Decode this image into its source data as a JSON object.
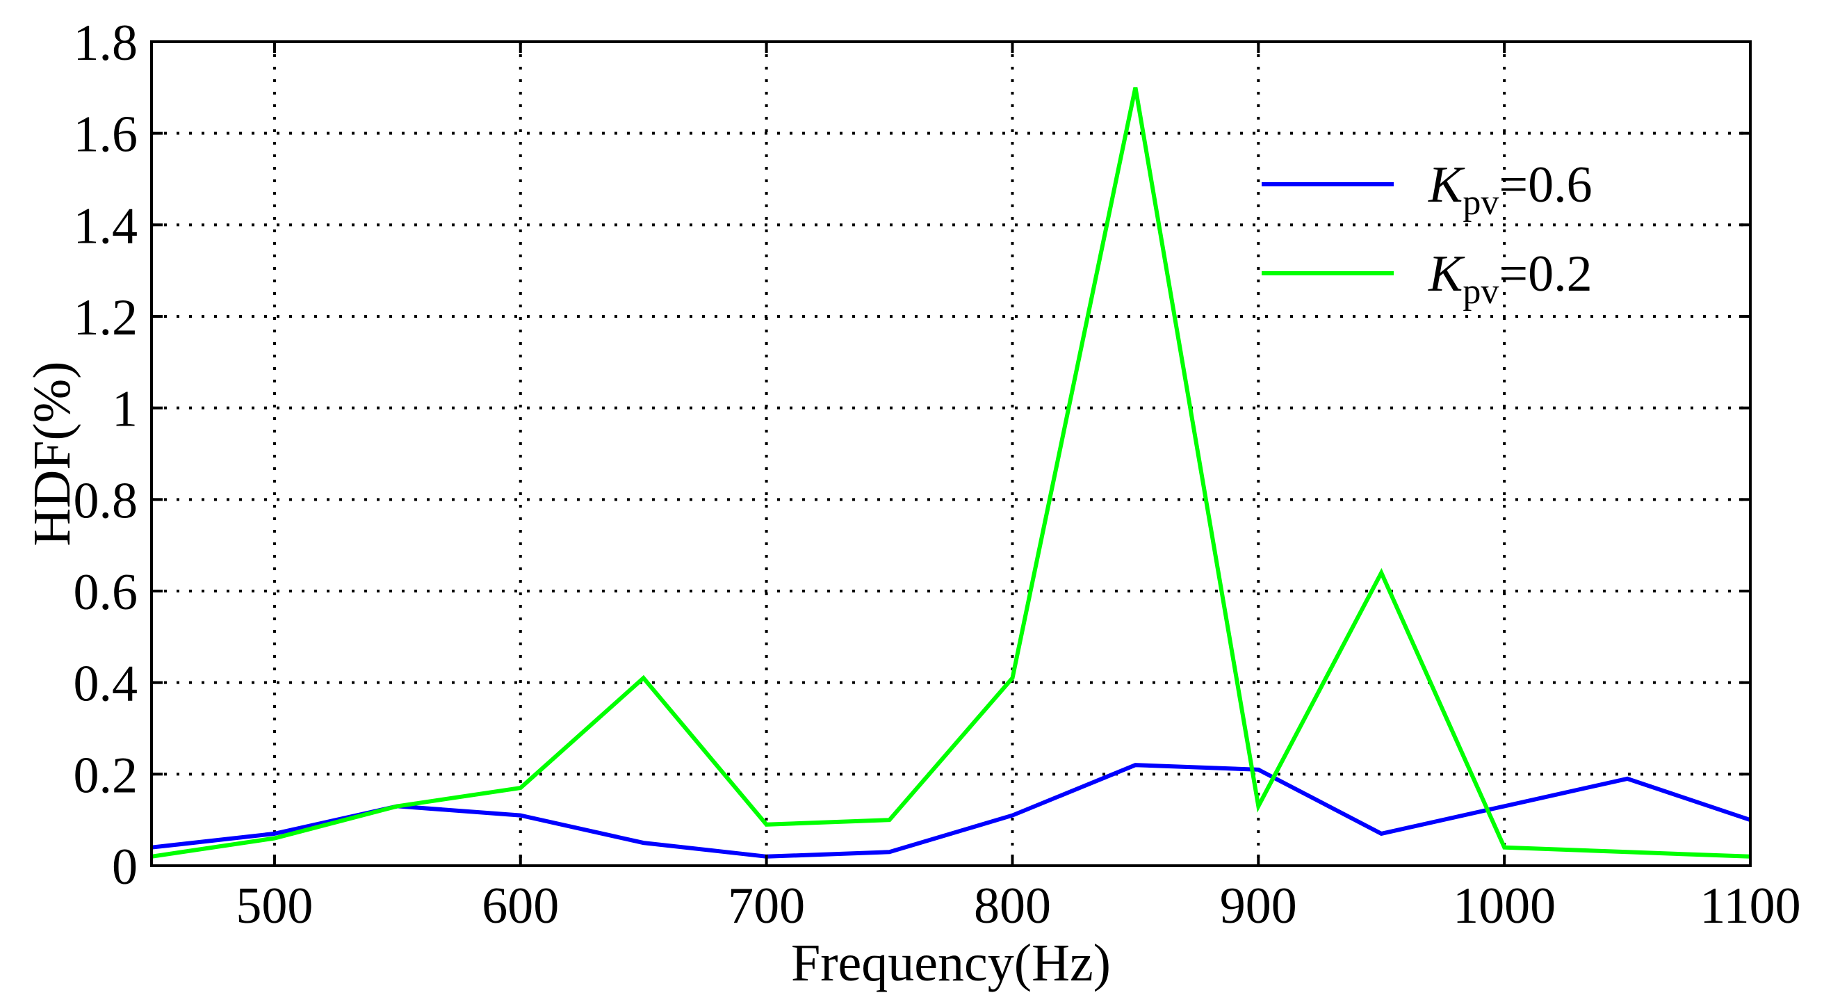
{
  "chart_data": {
    "type": "line",
    "title": "",
    "xlabel": "Frequency(Hz)",
    "ylabel": "HDF(%)",
    "xlim": [
      450,
      1100
    ],
    "ylim": [
      0,
      1.8
    ],
    "xticks": [
      500,
      600,
      700,
      800,
      900,
      1000,
      1100
    ],
    "xtick_labels": [
      "500",
      "600",
      "700",
      "800",
      "900",
      "1000",
      "1100"
    ],
    "yticks": [
      0,
      0.2,
      0.4,
      0.6,
      0.8,
      1,
      1.2,
      1.4,
      1.6,
      1.8
    ],
    "ytick_labels": [
      "0",
      "0.2",
      "0.4",
      "0.6",
      "0.8",
      "1",
      "1.2",
      "1.4",
      "1.6",
      "1.8"
    ],
    "grid": true,
    "grid_style": "dotted",
    "legend_position": "top-right",
    "x": [
      450,
      500,
      550,
      600,
      650,
      700,
      750,
      800,
      850,
      900,
      950,
      1000,
      1050,
      1100
    ],
    "series": [
      {
        "name": "Kpv=0.6",
        "legend_symbol": "K",
        "legend_subscript": "pv",
        "legend_value": "=0.6",
        "color": "#0000ff",
        "values": [
          0.04,
          0.07,
          0.13,
          0.11,
          0.05,
          0.02,
          0.03,
          0.11,
          0.22,
          0.21,
          0.07,
          0.13,
          0.19,
          0.1
        ]
      },
      {
        "name": "Kpv=0.2",
        "legend_symbol": "K",
        "legend_subscript": "pv",
        "legend_value": "=0.2",
        "color": "#00ff00",
        "values": [
          0.02,
          0.06,
          0.13,
          0.17,
          0.41,
          0.09,
          0.1,
          0.41,
          1.7,
          0.13,
          0.64,
          0.04,
          0.03,
          0.02
        ]
      }
    ]
  }
}
